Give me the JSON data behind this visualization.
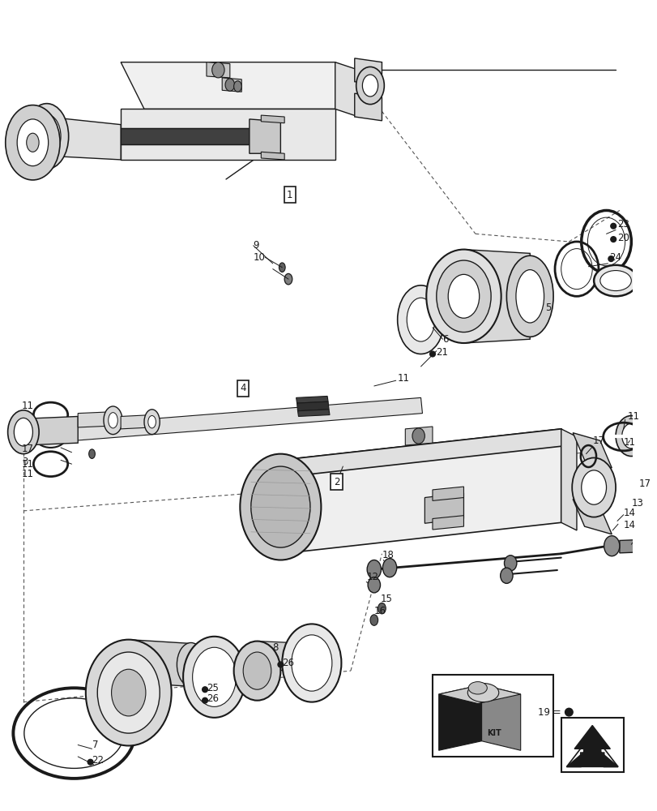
{
  "bg_color": "#ffffff",
  "lc": "#1a1a1a",
  "fig_width": 8.12,
  "fig_height": 10.0,
  "dpi": 100
}
